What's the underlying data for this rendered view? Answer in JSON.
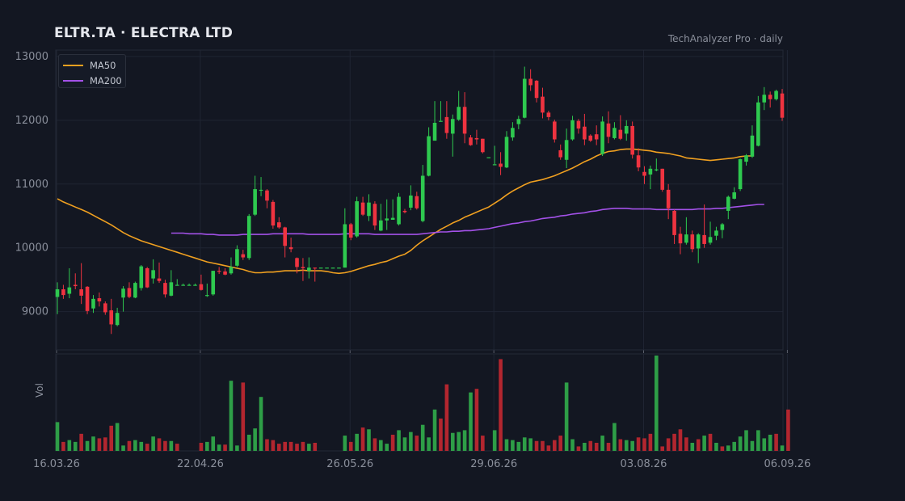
{
  "header": {
    "title": "ELTR.TA  ·  ELECTRA LTD",
    "subtitle": "TechAnalyzer Pro · daily"
  },
  "colors": {
    "background": "#131722",
    "grid": "#1f2533",
    "axis_text": "#8a8f9b",
    "up": "#2ec94f",
    "down": "#ef3340",
    "vol_up": "#2e9e47",
    "vol_down": "#b3262f",
    "ma50": "#f0a020",
    "ma200": "#a351e8"
  },
  "legend": [
    {
      "name": "MA50",
      "color": "#f0a020"
    },
    {
      "name": "MA200",
      "color": "#a351e8"
    }
  ],
  "volume_panel": {
    "ylabel": "Vol"
  },
  "chart_data": {
    "type": "candlestick",
    "title": "ELTR.TA  ·  ELECTRA LTD",
    "x_ticks": [
      "16.03.26",
      "22.04.26",
      "26.05.26",
      "29.06.26",
      "03.08.26",
      "06.09.26"
    ],
    "x_tick_index": [
      0,
      24,
      49,
      73,
      98,
      122
    ],
    "y_ticks": [
      9000,
      10000,
      11000,
      12000,
      13000
    ],
    "ylim": [
      8400,
      13100
    ],
    "grid": true,
    "legend_position": "top-left",
    "candles": [
      [
        9230,
        9350,
        8960,
        9460
      ],
      [
        9350,
        9260,
        9200,
        9420
      ],
      [
        9280,
        9380,
        9210,
        9680
      ],
      [
        9420,
        9400,
        9350,
        9600
      ],
      [
        9350,
        9250,
        9120,
        9760
      ],
      [
        9390,
        9010,
        8960,
        9400
      ],
      [
        9050,
        9200,
        8980,
        9260
      ],
      [
        9210,
        9160,
        9080,
        9300
      ],
      [
        9130,
        8990,
        8950,
        9160
      ],
      [
        9020,
        8800,
        8650,
        9200
      ],
      [
        8790,
        8980,
        8770,
        9060
      ],
      [
        9220,
        9360,
        9000,
        9400
      ],
      [
        9370,
        9230,
        9210,
        9460
      ],
      [
        9220,
        9450,
        9210,
        9470
      ],
      [
        9370,
        9710,
        9330,
        9730
      ],
      [
        9680,
        9380,
        9370,
        9700
      ],
      [
        9520,
        9650,
        9440,
        9820
      ],
      [
        9520,
        9480,
        9450,
        9770
      ],
      [
        9450,
        9270,
        9220,
        9500
      ],
      [
        9250,
        9460,
        9240,
        9650
      ],
      [
        9420,
        9420,
        9420,
        9510
      ],
      [
        9420,
        9420,
        9420,
        9440
      ],
      [
        9420,
        9420,
        9420,
        9440
      ],
      [
        9420,
        9420,
        9420,
        9440
      ],
      [
        9430,
        9340,
        9330,
        9580
      ],
      [
        9250,
        9260,
        9230,
        9440
      ],
      [
        9270,
        9640,
        9250,
        9640
      ],
      [
        9640,
        9630,
        9590,
        9700
      ],
      [
        9630,
        9580,
        9570,
        9680
      ],
      [
        9600,
        9700,
        9580,
        9850
      ],
      [
        9720,
        9980,
        9700,
        10040
      ],
      [
        9900,
        9850,
        9810,
        9970
      ],
      [
        9840,
        10500,
        9810,
        10530
      ],
      [
        10520,
        10920,
        10500,
        11130
      ],
      [
        10910,
        10910,
        10810,
        11110
      ],
      [
        10900,
        10740,
        10620,
        10920
      ],
      [
        10720,
        10350,
        10300,
        10750
      ],
      [
        10400,
        10320,
        10300,
        10480
      ],
      [
        10320,
        10030,
        9850,
        10330
      ],
      [
        10010,
        9980,
        9930,
        10160
      ],
      [
        9840,
        9700,
        9600,
        9850
      ],
      [
        9700,
        9680,
        9480,
        9840
      ],
      [
        9640,
        9690,
        9520,
        9850
      ],
      [
        9690,
        9680,
        9470,
        9690
      ],
      [
        9690,
        9690,
        9690,
        9690
      ],
      [
        9690,
        9690,
        9690,
        9690
      ],
      [
        9690,
        9690,
        9690,
        9690
      ],
      [
        9690,
        9690,
        9690,
        9690
      ],
      [
        9690,
        10370,
        9690,
        10620
      ],
      [
        10370,
        10160,
        10120,
        10390
      ],
      [
        10180,
        10730,
        10160,
        10800
      ],
      [
        10710,
        10520,
        10500,
        10800
      ],
      [
        10500,
        10710,
        10420,
        10840
      ],
      [
        10690,
        10350,
        10280,
        10730
      ],
      [
        10270,
        10430,
        10260,
        10690
      ],
      [
        10430,
        10460,
        10280,
        10760
      ],
      [
        10440,
        10470,
        10440,
        10760
      ],
      [
        10370,
        10800,
        10350,
        10860
      ],
      [
        10580,
        10560,
        10540,
        10610
      ],
      [
        10630,
        10820,
        10590,
        10980
      ],
      [
        10810,
        10620,
        10600,
        10880
      ],
      [
        10420,
        11130,
        10400,
        11300
      ],
      [
        11130,
        11750,
        11120,
        11890
      ],
      [
        11680,
        11960,
        11680,
        12300
      ],
      [
        11990,
        11990,
        11990,
        12300
      ],
      [
        12050,
        11800,
        11710,
        12300
      ],
      [
        11790,
        12020,
        11430,
        12090
      ],
      [
        12010,
        12210,
        11990,
        12460
      ],
      [
        12210,
        11790,
        11640,
        12440
      ],
      [
        11730,
        11610,
        11600,
        11770
      ],
      [
        11720,
        11700,
        11620,
        11850
      ],
      [
        11710,
        11500,
        11480,
        11710
      ],
      [
        11420,
        11420,
        11420,
        11420
      ],
      [
        11310,
        11310,
        11310,
        11600
      ],
      [
        11320,
        11270,
        11140,
        11500
      ],
      [
        11260,
        11740,
        11250,
        11830
      ],
      [
        11730,
        11880,
        11680,
        11970
      ],
      [
        11940,
        12020,
        11860,
        12070
      ],
      [
        12040,
        12650,
        12030,
        12840
      ],
      [
        12650,
        12550,
        12460,
        12800
      ],
      [
        12620,
        12350,
        12280,
        12630
      ],
      [
        12370,
        12120,
        12030,
        12510
      ],
      [
        12120,
        12050,
        12000,
        12150
      ],
      [
        11980,
        11700,
        11650,
        12010
      ],
      [
        11530,
        11420,
        11380,
        11620
      ],
      [
        11380,
        11690,
        11250,
        11870
      ],
      [
        11700,
        12000,
        11680,
        12070
      ],
      [
        11990,
        11870,
        11790,
        12020
      ],
      [
        11900,
        11700,
        11610,
        12100
      ],
      [
        11760,
        11680,
        11660,
        11780
      ],
      [
        11780,
        11700,
        11610,
        11920
      ],
      [
        11470,
        11980,
        11440,
        12060
      ],
      [
        11950,
        11740,
        11640,
        12140
      ],
      [
        11720,
        11880,
        11700,
        11970
      ],
      [
        11850,
        11710,
        11690,
        12080
      ],
      [
        11790,
        11910,
        11680,
        12000
      ],
      [
        11910,
        11460,
        11400,
        11980
      ],
      [
        11450,
        11260,
        11200,
        11560
      ],
      [
        11190,
        11130,
        11000,
        11280
      ],
      [
        11150,
        11240,
        10920,
        11290
      ],
      [
        11230,
        11230,
        11200,
        11400
      ],
      [
        11240,
        10910,
        10880,
        11240
      ],
      [
        10910,
        10620,
        10450,
        11000
      ],
      [
        10580,
        10200,
        10060,
        10600
      ],
      [
        10220,
        10070,
        9900,
        10330
      ],
      [
        10080,
        10210,
        10050,
        10480
      ],
      [
        10210,
        9980,
        9930,
        10270
      ],
      [
        9990,
        10210,
        9760,
        10230
      ],
      [
        10200,
        10060,
        10000,
        10680
      ],
      [
        10080,
        10170,
        10050,
        10410
      ],
      [
        10190,
        10270,
        10120,
        10330
      ],
      [
        10280,
        10370,
        10150,
        10390
      ],
      [
        10580,
        10800,
        10450,
        10820
      ],
      [
        10770,
        10870,
        10760,
        10950
      ],
      [
        10920,
        11390,
        10890,
        11400
      ],
      [
        11350,
        11450,
        11290,
        11470
      ],
      [
        11430,
        11760,
        11410,
        11920
      ],
      [
        11600,
        12280,
        11590,
        12380
      ],
      [
        12280,
        12400,
        12160,
        12520
      ],
      [
        12400,
        12330,
        12200,
        12450
      ],
      [
        12330,
        12460,
        12310,
        12480
      ],
      [
        12420,
        12040,
        11990,
        12490
      ]
    ],
    "volume": [
      [
        32,
        "u"
      ],
      [
        10,
        "d"
      ],
      [
        12,
        "u"
      ],
      [
        10,
        "u"
      ],
      [
        19,
        "d"
      ],
      [
        11,
        "u"
      ],
      [
        16,
        "u"
      ],
      [
        14,
        "d"
      ],
      [
        15,
        "d"
      ],
      [
        28,
        "d"
      ],
      [
        31,
        "u"
      ],
      [
        6,
        "u"
      ],
      [
        11,
        "d"
      ],
      [
        12,
        "u"
      ],
      [
        10,
        "u"
      ],
      [
        8,
        "d"
      ],
      [
        16,
        "u"
      ],
      [
        14,
        "d"
      ],
      [
        11,
        "d"
      ],
      [
        11,
        "u"
      ],
      [
        8,
        "d"
      ],
      [
        0,
        "u"
      ],
      [
        0,
        "u"
      ],
      [
        0,
        "u"
      ],
      [
        9,
        "d"
      ],
      [
        10,
        "u"
      ],
      [
        16,
        "u"
      ],
      [
        7,
        "u"
      ],
      [
        7,
        "d"
      ],
      [
        78,
        "u"
      ],
      [
        6,
        "u"
      ],
      [
        76,
        "d"
      ],
      [
        18,
        "u"
      ],
      [
        25,
        "u"
      ],
      [
        60,
        "u"
      ],
      [
        13,
        "d"
      ],
      [
        12,
        "d"
      ],
      [
        8,
        "d"
      ],
      [
        10,
        "d"
      ],
      [
        10,
        "d"
      ],
      [
        8,
        "d"
      ],
      [
        10,
        "d"
      ],
      [
        8,
        "u"
      ],
      [
        9,
        "d"
      ],
      [
        0,
        "u"
      ],
      [
        0,
        "u"
      ],
      [
        0,
        "u"
      ],
      [
        0,
        "u"
      ],
      [
        17,
        "u"
      ],
      [
        10,
        "d"
      ],
      [
        19,
        "u"
      ],
      [
        26,
        "d"
      ],
      [
        24,
        "u"
      ],
      [
        14,
        "d"
      ],
      [
        12,
        "u"
      ],
      [
        8,
        "u"
      ],
      [
        18,
        "d"
      ],
      [
        23,
        "u"
      ],
      [
        15,
        "u"
      ],
      [
        21,
        "u"
      ],
      [
        17,
        "d"
      ],
      [
        29,
        "u"
      ],
      [
        15,
        "u"
      ],
      [
        46,
        "u"
      ],
      [
        36,
        "d"
      ],
      [
        74,
        "d"
      ],
      [
        20,
        "u"
      ],
      [
        21,
        "u"
      ],
      [
        23,
        "u"
      ],
      [
        65,
        "u"
      ],
      [
        69,
        "d"
      ],
      [
        17,
        "d"
      ],
      [
        0,
        "u"
      ],
      [
        23,
        "u"
      ],
      [
        102,
        "d"
      ],
      [
        13,
        "u"
      ],
      [
        12,
        "u"
      ],
      [
        10,
        "u"
      ],
      [
        15,
        "u"
      ],
      [
        14,
        "u"
      ],
      [
        11,
        "d"
      ],
      [
        11,
        "d"
      ],
      [
        6,
        "d"
      ],
      [
        12,
        "d"
      ],
      [
        17,
        "d"
      ],
      [
        76,
        "u"
      ],
      [
        13,
        "u"
      ],
      [
        5,
        "d"
      ],
      [
        9,
        "u"
      ],
      [
        11,
        "d"
      ],
      [
        9,
        "d"
      ],
      [
        17,
        "u"
      ],
      [
        9,
        "d"
      ],
      [
        31,
        "u"
      ],
      [
        13,
        "d"
      ],
      [
        12,
        "u"
      ],
      [
        11,
        "u"
      ],
      [
        15,
        "d"
      ],
      [
        14,
        "d"
      ],
      [
        19,
        "d"
      ],
      [
        106,
        "u"
      ],
      [
        5,
        "d"
      ],
      [
        14,
        "d"
      ],
      [
        19,
        "d"
      ],
      [
        24,
        "d"
      ],
      [
        15,
        "d"
      ],
      [
        9,
        "u"
      ],
      [
        13,
        "d"
      ],
      [
        17,
        "u"
      ],
      [
        19,
        "d"
      ],
      [
        9,
        "u"
      ],
      [
        5,
        "d"
      ],
      [
        6,
        "u"
      ],
      [
        10,
        "u"
      ],
      [
        16,
        "u"
      ],
      [
        23,
        "u"
      ],
      [
        11,
        "u"
      ],
      [
        23,
        "u"
      ],
      [
        14,
        "u"
      ],
      [
        18,
        "u"
      ],
      [
        19,
        "d"
      ],
      [
        6,
        "u"
      ],
      [
        46,
        "d"
      ]
    ],
    "series": [
      {
        "name": "MA50",
        "start_index": 0,
        "values": [
          10770,
          10720,
          10680,
          10640,
          10600,
          10560,
          10510,
          10460,
          10410,
          10360,
          10300,
          10240,
          10190,
          10150,
          10110,
          10080,
          10050,
          10020,
          9990,
          9960,
          9930,
          9900,
          9870,
          9840,
          9810,
          9780,
          9760,
          9740,
          9720,
          9700,
          9680,
          9660,
          9630,
          9610,
          9610,
          9620,
          9620,
          9630,
          9640,
          9640,
          9640,
          9650,
          9640,
          9640,
          9640,
          9630,
          9610,
          9600,
          9610,
          9630,
          9660,
          9690,
          9720,
          9740,
          9770,
          9790,
          9830,
          9870,
          9900,
          9960,
          10040,
          10110,
          10170,
          10230,
          10290,
          10340,
          10390,
          10430,
          10480,
          10520,
          10560,
          10600,
          10640,
          10700,
          10760,
          10830,
          10890,
          10940,
          10990,
          11030,
          11050,
          11070,
          11100,
          11130,
          11170,
          11210,
          11250,
          11300,
          11350,
          11390,
          11440,
          11480,
          11510,
          11520,
          11540,
          11550,
          11550,
          11540,
          11530,
          11520,
          11500,
          11490,
          11480,
          11460,
          11440,
          11410,
          11400,
          11390,
          11380,
          11370,
          11380,
          11390,
          11400,
          11410,
          11430,
          11440,
          11440
        ]
      },
      {
        "name": "MA200",
        "start_index": 19,
        "values": [
          10230,
          10230,
          10230,
          10220,
          10220,
          10220,
          10210,
          10210,
          10200,
          10200,
          10200,
          10200,
          10210,
          10210,
          10210,
          10210,
          10210,
          10220,
          10220,
          10220,
          10220,
          10220,
          10220,
          10210,
          10210,
          10210,
          10210,
          10210,
          10210,
          10220,
          10220,
          10220,
          10220,
          10220,
          10210,
          10210,
          10210,
          10210,
          10210,
          10210,
          10210,
          10210,
          10220,
          10230,
          10240,
          10250,
          10250,
          10260,
          10260,
          10270,
          10270,
          10280,
          10290,
          10300,
          10320,
          10340,
          10360,
          10380,
          10390,
          10410,
          10420,
          10440,
          10460,
          10470,
          10480,
          10500,
          10510,
          10530,
          10540,
          10550,
          10570,
          10580,
          10600,
          10610,
          10620,
          10620,
          10620,
          10610,
          10610,
          10610,
          10610,
          10600,
          10600,
          10600,
          10600,
          10600,
          10600,
          10600,
          10610,
          10610,
          10610,
          10620,
          10620,
          10630,
          10640,
          10650,
          10660,
          10670,
          10680,
          10680
        ]
      }
    ]
  }
}
